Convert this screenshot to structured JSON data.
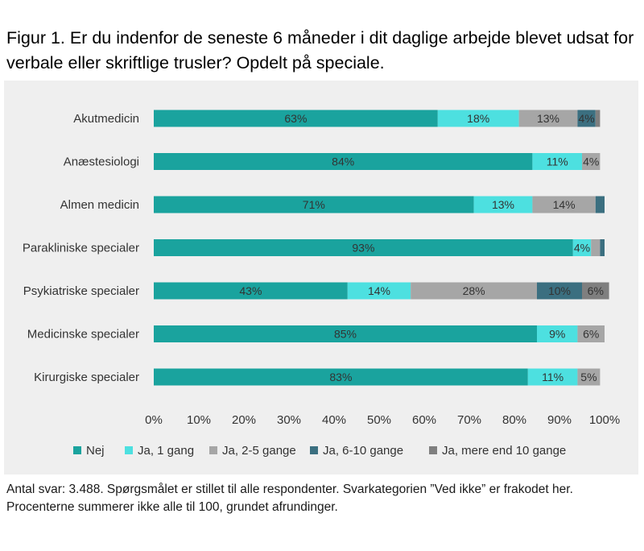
{
  "figure": {
    "title": "Figur 1. Er du indenfor de seneste 6 måneder i dit daglige arbejde blevet udsat for verbale eller skriftlige trusler? Opdelt på speciale.",
    "footnote": "Antal svar: 3.488. Spørgsmålet er stillet til alle respondenter. Svarkategorien ”Ved ikke” er frakodet her. Procenterne summerer ikke alle til 100, grundet afrundinger."
  },
  "chart_data": {
    "type": "bar",
    "orientation": "horizontal",
    "stacked": true,
    "categories": [
      "Akutmedicin",
      "Anæstesiologi",
      "Almen medicin",
      "Parakliniske specialer",
      "Psykiatriske specialer",
      "Medicinske specialer",
      "Kirurgiske specialer"
    ],
    "series": [
      {
        "name": "Nej",
        "color": "#1aa39e",
        "values": [
          63,
          84,
          71,
          93,
          43,
          85,
          83
        ],
        "labels": [
          "63%",
          "84%",
          "71%",
          "93%",
          "43%",
          "85%",
          "83%"
        ]
      },
      {
        "name": "Ja, 1 gang",
        "color": "#4de0e0",
        "values": [
          18,
          11,
          13,
          4,
          14,
          9,
          11
        ],
        "labels": [
          "18%",
          "11%",
          "13%",
          "4%",
          "14%",
          "9%",
          "11%"
        ]
      },
      {
        "name": "Ja, 2-5 gange",
        "color": "#a6a6a6",
        "values": [
          13,
          4,
          14,
          2,
          28,
          6,
          5
        ],
        "labels": [
          "13%",
          "4%",
          "14%",
          "",
          "28%",
          "6%",
          "5%"
        ]
      },
      {
        "name": "Ja, 6-10 gange",
        "color": "#3b6f80",
        "values": [
          4,
          0,
          2,
          1,
          10,
          0,
          0
        ],
        "labels": [
          "4%",
          "",
          "",
          "",
          "10%",
          "",
          ""
        ]
      },
      {
        "name": "Ja, mere end 10 gange",
        "color": "#7f7f7f",
        "values": [
          1,
          0,
          0,
          0,
          6,
          0,
          0
        ],
        "labels": [
          "",
          "",
          "",
          "",
          "6%",
          "",
          ""
        ]
      }
    ],
    "xlim": [
      0,
      100
    ],
    "xticks": [
      "0%",
      "10%",
      "20%",
      "30%",
      "40%",
      "50%",
      "60%",
      "70%",
      "80%",
      "90%",
      "100%"
    ],
    "grid": false,
    "legend_position": "bottom"
  }
}
